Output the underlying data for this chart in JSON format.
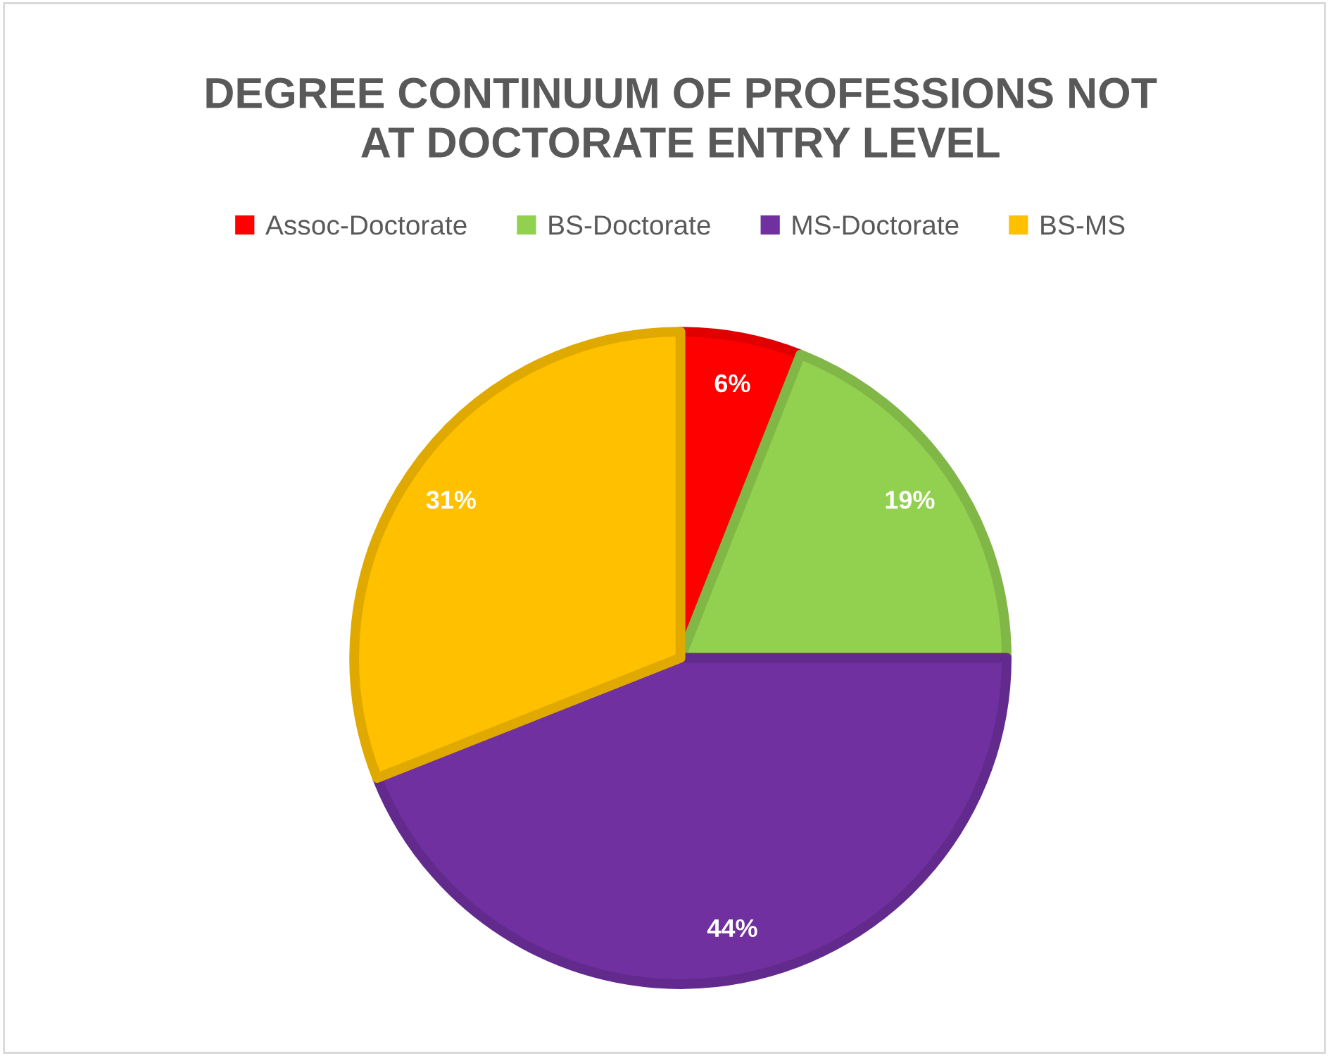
{
  "chart_data": {
    "type": "pie",
    "title": "DEGREE CONTINUUM OF PROFESSIONS NOT\nAT DOCTORATE ENTRY LEVEL",
    "categories": [
      "Assoc-Doctorate",
      "BS-Doctorate",
      "MS-Doctorate",
      "BS-MS"
    ],
    "values": [
      6,
      19,
      44,
      31
    ],
    "value_labels": [
      "6%",
      "19%",
      "44%",
      "31%"
    ],
    "colors": [
      "#ff0000",
      "#92d050",
      "#7030a0",
      "#ffc000"
    ],
    "legend": "top"
  }
}
